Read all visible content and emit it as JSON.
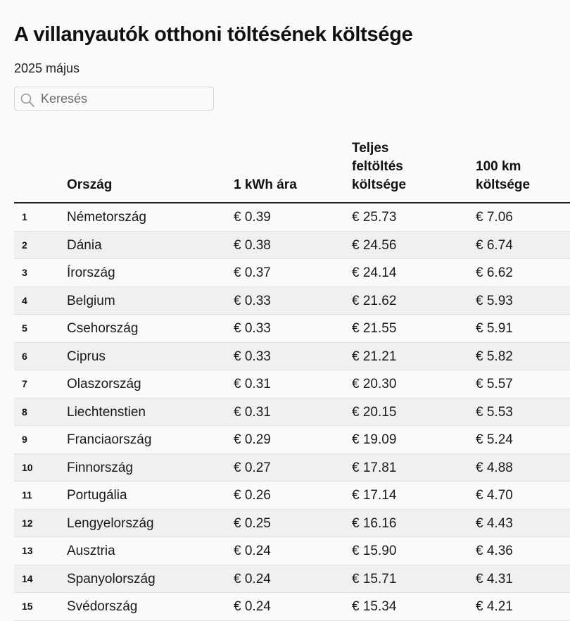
{
  "header": {
    "title": "A villanyautók otthoni töltésének költsége",
    "subtitle": "2025 május"
  },
  "search": {
    "placeholder": "Keresés",
    "icon": "search-icon"
  },
  "table": {
    "columns": {
      "rank": "",
      "country": "Ország",
      "kwh_price": "1 kWh ára",
      "full_charge": "Teljes feltöltés költsége",
      "per_100km": "100 km költsége"
    },
    "rows": [
      {
        "rank": "1",
        "country": "Németország",
        "kwh_price": "€ 0.39",
        "full_charge": "€ 25.73",
        "per_100km": "€ 7.06"
      },
      {
        "rank": "2",
        "country": "Dánia",
        "kwh_price": "€ 0.38",
        "full_charge": "€ 24.56",
        "per_100km": "€ 6.74"
      },
      {
        "rank": "3",
        "country": "Írország",
        "kwh_price": "€ 0.37",
        "full_charge": "€ 24.14",
        "per_100km": "€ 6.62"
      },
      {
        "rank": "4",
        "country": "Belgium",
        "kwh_price": "€ 0.33",
        "full_charge": "€ 21.62",
        "per_100km": "€ 5.93"
      },
      {
        "rank": "5",
        "country": "Csehország",
        "kwh_price": "€ 0.33",
        "full_charge": "€ 21.55",
        "per_100km": "€ 5.91"
      },
      {
        "rank": "6",
        "country": "Ciprus",
        "kwh_price": "€ 0.33",
        "full_charge": "€ 21.21",
        "per_100km": "€ 5.82"
      },
      {
        "rank": "7",
        "country": "Olaszország",
        "kwh_price": "€ 0.31",
        "full_charge": "€ 20.30",
        "per_100km": "€ 5.57"
      },
      {
        "rank": "8",
        "country": "Liechtenstien",
        "kwh_price": "€ 0.31",
        "full_charge": "€ 20.15",
        "per_100km": "€ 5.53"
      },
      {
        "rank": "9",
        "country": "Franciaország",
        "kwh_price": "€ 0.29",
        "full_charge": "€ 19.09",
        "per_100km": "€ 5.24"
      },
      {
        "rank": "10",
        "country": "Finnország",
        "kwh_price": "€ 0.27",
        "full_charge": "€ 17.81",
        "per_100km": "€ 4.88"
      },
      {
        "rank": "11",
        "country": "Portugália",
        "kwh_price": "€ 0.26",
        "full_charge": "€ 17.14",
        "per_100km": "€ 4.70"
      },
      {
        "rank": "12",
        "country": "Lengyelország",
        "kwh_price": "€ 0.25",
        "full_charge": "€ 16.16",
        "per_100km": "€ 4.43"
      },
      {
        "rank": "13",
        "country": "Ausztria",
        "kwh_price": "€ 0.24",
        "full_charge": "€ 15.90",
        "per_100km": "€ 4.36"
      },
      {
        "rank": "14",
        "country": "Spanyolország",
        "kwh_price": "€ 0.24",
        "full_charge": "€ 15.71",
        "per_100km": "€ 4.31"
      },
      {
        "rank": "15",
        "country": "Svédország",
        "kwh_price": "€ 0.24",
        "full_charge": "€ 15.34",
        "per_100km": "€ 4.21"
      }
    ]
  }
}
